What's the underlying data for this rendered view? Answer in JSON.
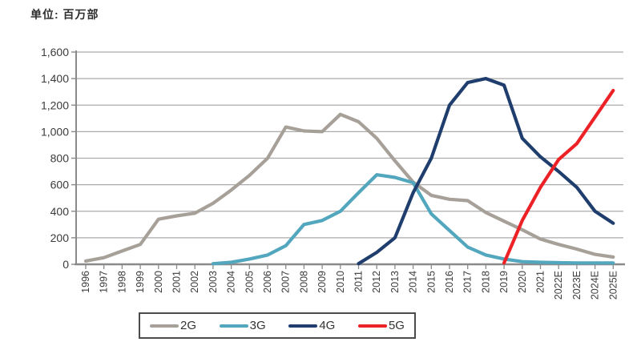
{
  "title": "单位: 百万部",
  "chart_data": {
    "type": "line",
    "title": "单位: 百万部",
    "xlabel": "",
    "ylabel": "",
    "ylim": [
      0,
      1600
    ],
    "ytick_interval": 200,
    "grid": true,
    "legend_position": "bottom",
    "categories": [
      "1996",
      "1997",
      "1998",
      "1999",
      "2000",
      "2001",
      "2002",
      "2003",
      "2004",
      "2005",
      "2006",
      "2007",
      "2008",
      "2009",
      "2010",
      "2011",
      "2012",
      "2013",
      "2014",
      "2015",
      "2016",
      "2017",
      "2018",
      "2019",
      "2020",
      "2021",
      "2022E",
      "2023E",
      "2024E",
      "2025E"
    ],
    "series": [
      {
        "name": "2G",
        "color": "#a6a099",
        "values": [
          25,
          50,
          100,
          150,
          340,
          365,
          385,
          460,
          560,
          670,
          800,
          1035,
          1005,
          1000,
          1130,
          1075,
          950,
          780,
          620,
          520,
          490,
          480,
          390,
          325,
          260,
          190,
          150,
          115,
          75,
          55
        ]
      },
      {
        "name": "3G",
        "color": "#52a6bd",
        "values": [
          null,
          null,
          null,
          null,
          null,
          null,
          null,
          5,
          15,
          40,
          70,
          140,
          300,
          330,
          400,
          540,
          675,
          655,
          615,
          380,
          255,
          130,
          70,
          40,
          20,
          15,
          12,
          10,
          10,
          10
        ]
      },
      {
        "name": "4G",
        "color": "#1f3e6d",
        "values": [
          null,
          null,
          null,
          null,
          null,
          null,
          null,
          null,
          null,
          null,
          null,
          null,
          null,
          null,
          null,
          5,
          90,
          200,
          540,
          800,
          1200,
          1370,
          1400,
          1350,
          950,
          810,
          700,
          580,
          400,
          310
        ]
      },
      {
        "name": "5G",
        "color": "#ec2227",
        "values": [
          null,
          null,
          null,
          null,
          null,
          null,
          null,
          null,
          null,
          null,
          null,
          null,
          null,
          null,
          null,
          null,
          null,
          null,
          null,
          null,
          null,
          null,
          null,
          10,
          330,
          580,
          790,
          910,
          1110,
          1310
        ]
      }
    ]
  }
}
